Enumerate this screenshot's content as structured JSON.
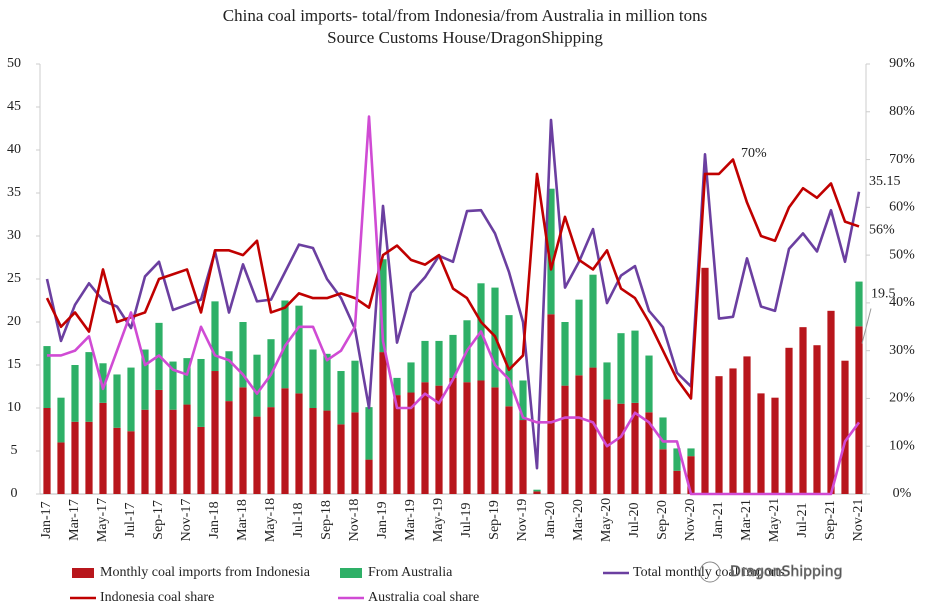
{
  "chart_data": {
    "type": "bar",
    "title": "China coal imports- total/from Indonesia/from Australia in million tons",
    "subtitle": "Source Customs House/DragonShipping",
    "watermark": "DragonShipping",
    "categories": [
      "Jan-17",
      null,
      "Mar-17",
      null,
      "May-17",
      null,
      "Jul-17",
      null,
      "Sep-17",
      null,
      "Nov-17",
      null,
      "Jan-18",
      null,
      "Mar-18",
      null,
      "May-18",
      null,
      "Jul-18",
      null,
      "Sep-18",
      null,
      "Nov-18",
      null,
      "Jan-19",
      null,
      "Mar-19",
      null,
      "May-19",
      null,
      "Jul-19",
      null,
      "Sep-19",
      null,
      "Nov-19",
      null,
      "Jan-20",
      null,
      "Mar-20",
      null,
      "May-20",
      null,
      "Jul-20",
      null,
      "Sep-20",
      null,
      "Nov-20",
      null,
      "Jan-21",
      null,
      "Mar-21",
      null,
      "May-21",
      null,
      "Jul-21",
      null,
      "Sep-21",
      null,
      "Nov-21"
    ],
    "ylim": [
      0,
      50
    ],
    "yticks": [
      0,
      5,
      10,
      15,
      20,
      25,
      30,
      35,
      40,
      45,
      50
    ],
    "y2lim": [
      0,
      90
    ],
    "y2ticks": [
      {
        "value": 0,
        "label": "0%"
      },
      {
        "value": 10,
        "label": "10%"
      },
      {
        "value": 20,
        "label": "20%"
      },
      {
        "value": 30,
        "label": "30%"
      },
      {
        "value": 40,
        "label": "40%"
      },
      {
        "value": 50,
        "label": "50%"
      },
      {
        "value": 60,
        "label": "60%"
      },
      {
        "value": 70,
        "label": "70%"
      },
      {
        "value": 80,
        "label": "80%"
      },
      {
        "value": 90,
        "label": "90%"
      }
    ],
    "series": [
      {
        "name": "Monthly coal imports from Indonesia",
        "type": "bar",
        "color": "#b8161c",
        "values": [
          10,
          6,
          8.4,
          8.4,
          10.6,
          7.7,
          7.3,
          9.8,
          12.1,
          9.8,
          10.4,
          7.8,
          14.3,
          10.8,
          12.4,
          9,
          10.1,
          12.3,
          11.7,
          10,
          9.7,
          8.1,
          9.5,
          4,
          16.5,
          11.5,
          11.8,
          13,
          12.6,
          13.5,
          13,
          13.2,
          12.4,
          10.2,
          8.6,
          0.3,
          20.9,
          12.6,
          13.8,
          14.7,
          11,
          10.5,
          10.6,
          9.5,
          5.2,
          2.7,
          4.4,
          26.3,
          13.7,
          14.6,
          16,
          11.7,
          11.2,
          17,
          19.4,
          17.3,
          21.3,
          15.5,
          19.5
        ],
        "value_labels": [
          null,
          null,
          null,
          null,
          null,
          null,
          null,
          null,
          null,
          null,
          null,
          null,
          null,
          null,
          null,
          null,
          null,
          null,
          null,
          null,
          null,
          null,
          null,
          null,
          null,
          null,
          null,
          null,
          null,
          null,
          null,
          null,
          null,
          null,
          null,
          null,
          null,
          null,
          null,
          null,
          null,
          null,
          null,
          null,
          null,
          null,
          null,
          null,
          null,
          null,
          null,
          null,
          null,
          null,
          null,
          null,
          null,
          null,
          "19.5"
        ]
      },
      {
        "name": "From Australia",
        "type": "bar",
        "color": "#2eb067",
        "values": [
          7.2,
          5.2,
          6.6,
          8.1,
          4.6,
          6.2,
          7.4,
          7,
          7.8,
          5.6,
          5.4,
          7.9,
          8.1,
          5.8,
          7.6,
          7.2,
          7.9,
          10.2,
          10.2,
          6.8,
          6.6,
          6.2,
          6,
          6.1,
          10.8,
          2,
          3.5,
          4.8,
          5.2,
          5,
          7.2,
          11.3,
          11.6,
          10.6,
          4.6,
          0.2,
          14.6,
          7.4,
          8.8,
          10.8,
          4.3,
          8.2,
          8.4,
          6.6,
          3.7,
          2.6,
          0.9,
          0,
          0,
          0,
          0,
          0,
          0,
          0,
          0,
          0,
          0,
          0,
          5.2
        ]
      },
      {
        "name": "Total monthly coal imports",
        "type": "line",
        "color": "#6b3fa0",
        "values": [
          25,
          17.8,
          22,
          24.5,
          22.5,
          21.8,
          19.3,
          25.3,
          27,
          21.4,
          22,
          22.6,
          28.2,
          21.1,
          26.7,
          22.4,
          22.6,
          25.8,
          29,
          28.6,
          25,
          22.8,
          19.2,
          10,
          33.5,
          17.6,
          23.4,
          25.2,
          27.7,
          27,
          32.9,
          33,
          30.3,
          25.8,
          20,
          3,
          43.5,
          24,
          27,
          30.8,
          22.2,
          25.4,
          26.5,
          21.3,
          19.4,
          14.1,
          12.5,
          39.5,
          20.4,
          20.6,
          27.4,
          21.8,
          21.3,
          28.5,
          30.3,
          28.2,
          33,
          27,
          35.15
        ],
        "value_labels": [
          null,
          null,
          null,
          null,
          null,
          null,
          null,
          null,
          null,
          null,
          null,
          null,
          null,
          null,
          null,
          null,
          null,
          null,
          null,
          null,
          null,
          null,
          null,
          null,
          null,
          null,
          null,
          null,
          null,
          null,
          null,
          null,
          null,
          null,
          null,
          null,
          null,
          null,
          null,
          null,
          null,
          null,
          null,
          null,
          null,
          null,
          null,
          null,
          null,
          null,
          null,
          null,
          null,
          null,
          null,
          null,
          null,
          null,
          "35.15"
        ]
      },
      {
        "name": "Indonesia coal share",
        "type": "line",
        "axis": "y2",
        "color": "#c00000",
        "values": [
          41,
          35,
          38,
          34,
          47,
          36,
          37,
          38,
          45,
          46,
          47,
          38,
          51,
          51,
          50,
          53,
          38,
          39,
          42,
          41,
          41,
          42,
          41,
          39,
          50,
          52,
          49,
          48,
          50,
          43,
          41,
          36,
          33,
          26,
          29,
          67,
          47,
          58,
          49,
          47,
          51,
          43,
          41,
          36,
          30,
          24,
          20,
          67,
          67,
          70,
          61,
          54,
          53,
          60,
          64,
          62,
          65,
          57,
          56
        ],
        "value_labels": [
          null,
          null,
          null,
          null,
          null,
          null,
          null,
          null,
          null,
          null,
          null,
          null,
          null,
          null,
          null,
          null,
          null,
          null,
          null,
          null,
          null,
          null,
          null,
          null,
          null,
          null,
          null,
          null,
          null,
          null,
          null,
          null,
          null,
          null,
          null,
          null,
          null,
          null,
          null,
          null,
          null,
          null,
          null,
          null,
          null,
          null,
          null,
          null,
          null,
          "70%",
          null,
          null,
          null,
          null,
          null,
          null,
          null,
          null,
          "56%"
        ]
      },
      {
        "name": "Australia coal share",
        "type": "line",
        "axis": "y2",
        "color": "#d04bd4",
        "values": [
          29,
          29,
          30,
          33,
          22,
          30,
          38,
          27,
          29,
          26,
          25,
          35,
          29,
          28,
          25,
          21,
          25,
          31,
          35,
          35,
          28,
          30,
          35,
          79,
          32,
          18,
          18,
          21,
          19,
          24,
          30,
          34,
          27,
          24,
          16,
          15,
          15,
          16,
          16,
          15,
          10,
          12,
          17,
          15,
          11,
          11,
          0,
          0,
          0,
          0,
          0,
          0,
          0,
          0,
          0,
          0,
          0,
          11,
          15
        ]
      }
    ]
  }
}
